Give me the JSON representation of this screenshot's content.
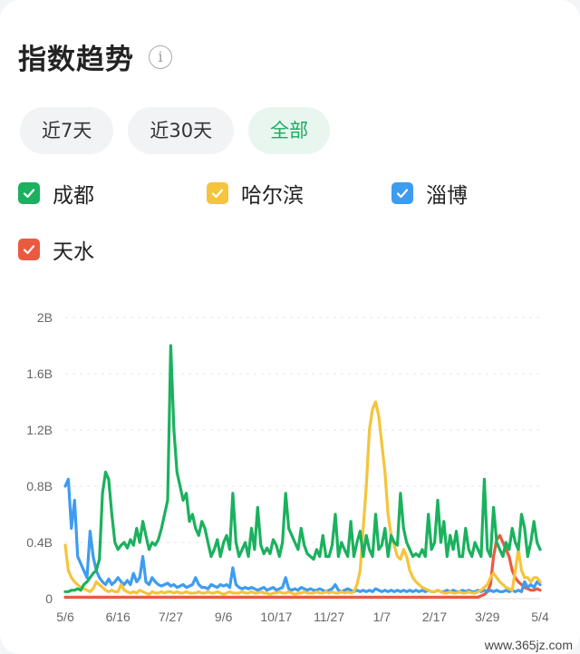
{
  "title": "指数趋势",
  "info_icon": "info-icon",
  "info_glyph": "i",
  "tabs": [
    {
      "label": "近7天",
      "active": false
    },
    {
      "label": "近30天",
      "active": false
    },
    {
      "label": "全部",
      "active": true
    }
  ],
  "legend": [
    {
      "label": "成都",
      "color": "#1bb15e",
      "checked": true
    },
    {
      "label": "哈尔滨",
      "color": "#f5c43a",
      "checked": true
    },
    {
      "label": "淄博",
      "color": "#3d9cf0",
      "checked": true
    },
    {
      "label": "天水",
      "color": "#ea5a40",
      "checked": true
    }
  ],
  "watermark": "www.365jz.com",
  "chart_data": {
    "type": "line",
    "y_ticks": [
      "0",
      "0.4B",
      "0.8B",
      "1.2B",
      "1.6B",
      "2B"
    ],
    "ylim": [
      0,
      2.0
    ],
    "y_unit": "B",
    "x_ticks": [
      "5/6",
      "6/16",
      "7/27",
      "9/6",
      "10/17",
      "11/27",
      "1/7",
      "2/17",
      "3/29",
      "5/4"
    ],
    "grid": "horizontal dashed",
    "series": [
      {
        "name": "成都",
        "color": "#1bb15e",
        "values": [
          0.05,
          0.05,
          0.06,
          0.06,
          0.07,
          0.06,
          0.1,
          0.12,
          0.15,
          0.18,
          0.2,
          0.28,
          0.75,
          0.9,
          0.85,
          0.6,
          0.4,
          0.35,
          0.38,
          0.4,
          0.36,
          0.42,
          0.38,
          0.5,
          0.4,
          0.55,
          0.45,
          0.35,
          0.4,
          0.38,
          0.42,
          0.5,
          0.6,
          0.7,
          1.8,
          1.2,
          0.9,
          0.8,
          0.7,
          0.75,
          0.55,
          0.6,
          0.5,
          0.45,
          0.55,
          0.5,
          0.4,
          0.3,
          0.35,
          0.42,
          0.3,
          0.4,
          0.45,
          0.35,
          0.75,
          0.4,
          0.3,
          0.35,
          0.4,
          0.3,
          0.5,
          0.35,
          0.65,
          0.38,
          0.32,
          0.36,
          0.32,
          0.42,
          0.38,
          0.3,
          0.4,
          0.75,
          0.5,
          0.45,
          0.4,
          0.35,
          0.5,
          0.38,
          0.32,
          0.3,
          0.28,
          0.35,
          0.3,
          0.45,
          0.3,
          0.3,
          0.38,
          0.6,
          0.3,
          0.4,
          0.35,
          0.3,
          0.55,
          0.3,
          0.4,
          0.48,
          0.3,
          0.45,
          0.35,
          0.3,
          0.6,
          0.35,
          0.38,
          0.5,
          0.3,
          0.45,
          0.4,
          0.38,
          0.75,
          0.5,
          0.4,
          0.35,
          0.3,
          0.32,
          0.3,
          0.35,
          0.3,
          0.6,
          0.35,
          0.4,
          0.7,
          0.4,
          0.55,
          0.3,
          0.45,
          0.35,
          0.48,
          0.3,
          0.3,
          0.5,
          0.35,
          0.3,
          0.4,
          0.35,
          0.3,
          0.85,
          0.35,
          0.3,
          0.65,
          0.4,
          0.35,
          0.3,
          0.4,
          0.35,
          0.5,
          0.4,
          0.35,
          0.6,
          0.5,
          0.3,
          0.4,
          0.55,
          0.4,
          0.35
        ]
      },
      {
        "name": "哈尔滨",
        "color": "#f5c43a",
        "values": [
          0.38,
          0.2,
          0.15,
          0.12,
          0.1,
          0.08,
          0.07,
          0.06,
          0.05,
          0.07,
          0.12,
          0.1,
          0.08,
          0.06,
          0.05,
          0.06,
          0.05,
          0.05,
          0.1,
          0.06,
          0.05,
          0.04,
          0.05,
          0.04,
          0.06,
          0.05,
          0.04,
          0.03,
          0.05,
          0.04,
          0.04,
          0.05,
          0.04,
          0.05,
          0.05,
          0.04,
          0.05,
          0.04,
          0.04,
          0.05,
          0.04,
          0.04,
          0.04,
          0.05,
          0.04,
          0.04,
          0.05,
          0.04,
          0.04,
          0.05,
          0.04,
          0.03,
          0.04,
          0.05,
          0.04,
          0.04,
          0.04,
          0.05,
          0.04,
          0.04,
          0.05,
          0.04,
          0.04,
          0.05,
          0.04,
          0.04,
          0.03,
          0.04,
          0.04,
          0.05,
          0.04,
          0.04,
          0.05,
          0.04,
          0.03,
          0.04,
          0.04,
          0.05,
          0.04,
          0.04,
          0.04,
          0.05,
          0.04,
          0.04,
          0.05,
          0.04,
          0.05,
          0.04,
          0.04,
          0.05,
          0.04,
          0.05,
          0.04,
          0.05,
          0.1,
          0.2,
          0.5,
          0.8,
          1.2,
          1.35,
          1.4,
          1.3,
          1.1,
          0.9,
          0.6,
          0.45,
          0.38,
          0.3,
          0.28,
          0.35,
          0.3,
          0.2,
          0.15,
          0.12,
          0.1,
          0.08,
          0.07,
          0.06,
          0.05,
          0.05,
          0.06,
          0.05,
          0.04,
          0.04,
          0.05,
          0.04,
          0.04,
          0.05,
          0.04,
          0.04,
          0.05,
          0.04,
          0.04,
          0.05,
          0.06,
          0.08,
          0.1,
          0.15,
          0.18,
          0.15,
          0.12,
          0.1,
          0.08,
          0.07,
          0.06,
          0.2,
          0.35,
          0.2,
          0.15,
          0.15,
          0.12,
          0.15,
          0.15,
          0.12
        ]
      },
      {
        "name": "淄博",
        "color": "#3d9cf0",
        "values": [
          0.8,
          0.85,
          0.5,
          0.7,
          0.3,
          0.25,
          0.2,
          0.15,
          0.48,
          0.3,
          0.2,
          0.15,
          0.12,
          0.1,
          0.14,
          0.1,
          0.12,
          0.15,
          0.12,
          0.1,
          0.13,
          0.1,
          0.18,
          0.12,
          0.15,
          0.3,
          0.12,
          0.1,
          0.15,
          0.12,
          0.1,
          0.09,
          0.1,
          0.11,
          0.09,
          0.1,
          0.08,
          0.09,
          0.1,
          0.08,
          0.09,
          0.1,
          0.15,
          0.1,
          0.08,
          0.08,
          0.07,
          0.1,
          0.09,
          0.08,
          0.1,
          0.09,
          0.1,
          0.08,
          0.22,
          0.1,
          0.08,
          0.07,
          0.08,
          0.07,
          0.08,
          0.07,
          0.06,
          0.07,
          0.08,
          0.06,
          0.07,
          0.08,
          0.06,
          0.07,
          0.08,
          0.15,
          0.07,
          0.06,
          0.07,
          0.06,
          0.08,
          0.07,
          0.06,
          0.07,
          0.06,
          0.06,
          0.07,
          0.06,
          0.05,
          0.06,
          0.07,
          0.1,
          0.06,
          0.05,
          0.06,
          0.07,
          0.06,
          0.05,
          0.06,
          0.05,
          0.06,
          0.05,
          0.06,
          0.05,
          0.07,
          0.06,
          0.05,
          0.06,
          0.05,
          0.06,
          0.05,
          0.06,
          0.05,
          0.06,
          0.05,
          0.06,
          0.05,
          0.06,
          0.05,
          0.06,
          0.05,
          0.06,
          0.05,
          0.05,
          0.06,
          0.05,
          0.05,
          0.06,
          0.05,
          0.06,
          0.05,
          0.05,
          0.06,
          0.05,
          0.06,
          0.05,
          0.05,
          0.06,
          0.05,
          0.06,
          0.05,
          0.06,
          0.05,
          0.06,
          0.05,
          0.05,
          0.06,
          0.05,
          0.06,
          0.05,
          0.06,
          0.05,
          0.12,
          0.08,
          0.1,
          0.08,
          0.12,
          0.1
        ]
      },
      {
        "name": "天水",
        "color": "#ea5a40",
        "values": [
          0.01,
          0.01,
          0.01,
          0.01,
          0.01,
          0.01,
          0.01,
          0.01,
          0.01,
          0.01,
          0.01,
          0.01,
          0.01,
          0.01,
          0.01,
          0.01,
          0.01,
          0.01,
          0.01,
          0.01,
          0.01,
          0.01,
          0.01,
          0.01,
          0.01,
          0.01,
          0.01,
          0.01,
          0.01,
          0.01,
          0.01,
          0.01,
          0.01,
          0.01,
          0.01,
          0.01,
          0.01,
          0.01,
          0.01,
          0.01,
          0.01,
          0.01,
          0.01,
          0.01,
          0.01,
          0.01,
          0.01,
          0.01,
          0.01,
          0.01,
          0.01,
          0.01,
          0.01,
          0.01,
          0.01,
          0.01,
          0.01,
          0.01,
          0.01,
          0.01,
          0.01,
          0.01,
          0.01,
          0.01,
          0.01,
          0.01,
          0.01,
          0.01,
          0.01,
          0.01,
          0.01,
          0.01,
          0.01,
          0.01,
          0.01,
          0.01,
          0.01,
          0.01,
          0.01,
          0.01,
          0.01,
          0.01,
          0.01,
          0.01,
          0.01,
          0.01,
          0.01,
          0.01,
          0.01,
          0.01,
          0.01,
          0.01,
          0.01,
          0.01,
          0.01,
          0.01,
          0.01,
          0.01,
          0.01,
          0.01,
          0.01,
          0.01,
          0.01,
          0.01,
          0.01,
          0.01,
          0.01,
          0.01,
          0.01,
          0.01,
          0.01,
          0.01,
          0.01,
          0.01,
          0.01,
          0.01,
          0.01,
          0.01,
          0.01,
          0.01,
          0.01,
          0.01,
          0.01,
          0.01,
          0.01,
          0.01,
          0.01,
          0.01,
          0.01,
          0.01,
          0.01,
          0.01,
          0.01,
          0.01,
          0.02,
          0.03,
          0.05,
          0.1,
          0.3,
          0.42,
          0.45,
          0.4,
          0.35,
          0.3,
          0.2,
          0.15,
          0.12,
          0.1,
          0.08,
          0.07,
          0.06,
          0.06,
          0.07,
          0.06
        ]
      }
    ]
  }
}
